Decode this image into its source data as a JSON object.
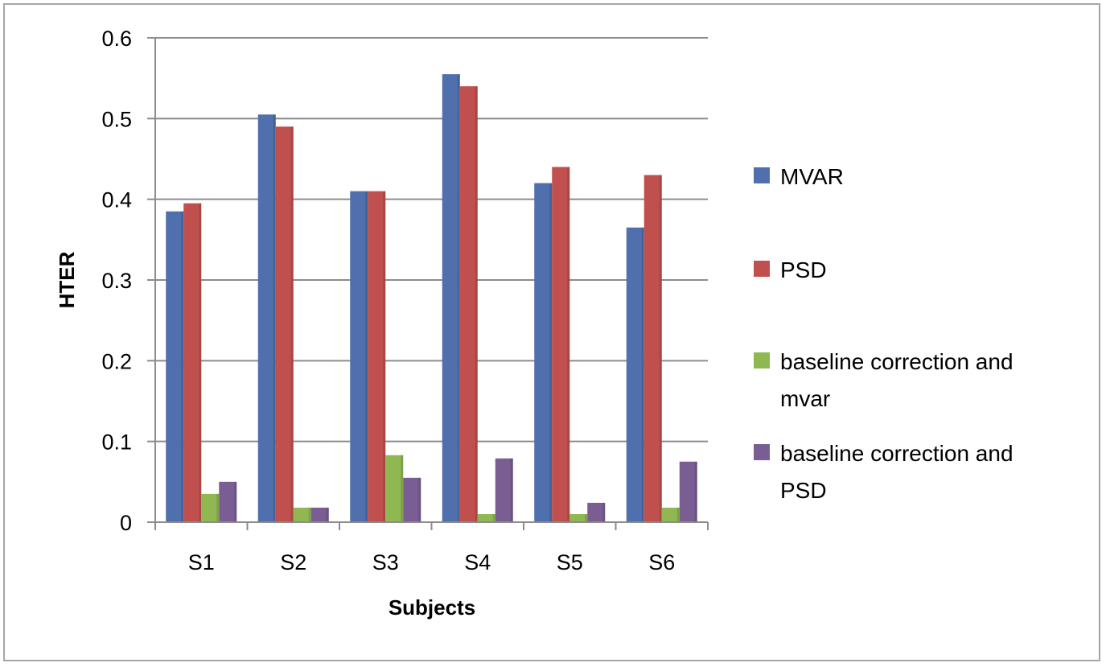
{
  "chart_data": {
    "type": "bar",
    "title": "",
    "xlabel": "Subjects",
    "ylabel": "HTER",
    "ylim": [
      0,
      0.6
    ],
    "yticks": [
      "0",
      "0.1",
      "0.2",
      "0.3",
      "0.4",
      "0.5",
      "0.6"
    ],
    "ytick_values": [
      0,
      0.1,
      0.2,
      0.3,
      0.4,
      0.5,
      0.6
    ],
    "grid": true,
    "legend_position": "right",
    "categories": [
      "S1",
      "S2",
      "S3",
      "S4",
      "S5",
      "S6"
    ],
    "series": [
      {
        "name": "MVAR",
        "legend_lines": [
          "MVAR"
        ],
        "color": "#4f6fad",
        "values": [
          0.385,
          0.505,
          0.41,
          0.555,
          0.42,
          0.365
        ]
      },
      {
        "name": "PSD",
        "legend_lines": [
          "PSD"
        ],
        "color": "#c0504d",
        "values": [
          0.395,
          0.49,
          0.41,
          0.54,
          0.44,
          0.43
        ]
      },
      {
        "name": "baseline correction and mvar",
        "legend_lines": [
          "baseline correction and",
          "mvar"
        ],
        "color": "#8fb752",
        "values": [
          0.035,
          0.018,
          0.083,
          0.01,
          0.01,
          0.018
        ]
      },
      {
        "name": "baseline correction and PSD",
        "legend_lines": [
          "baseline correction and",
          "PSD"
        ],
        "color": "#7a5e93",
        "values": [
          0.05,
          0.018,
          0.055,
          0.079,
          0.024,
          0.075
        ]
      }
    ]
  }
}
